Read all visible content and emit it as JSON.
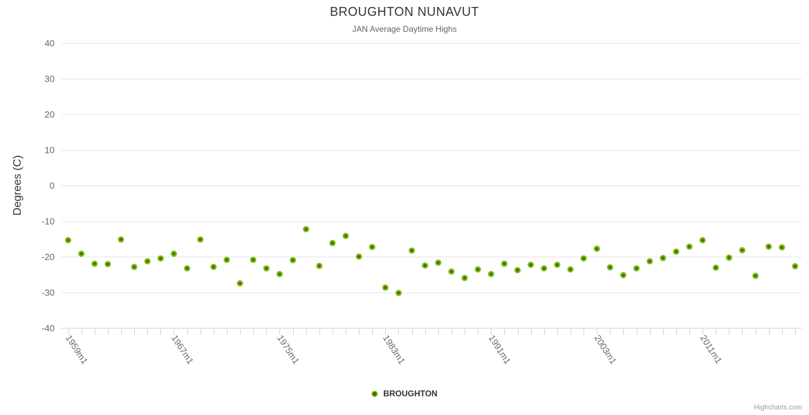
{
  "title": "BROUGHTON NUNAVUT",
  "subtitle": "JAN Average Daytime Highs",
  "legend": {
    "label": "BROUGHTON"
  },
  "credit": "Highcharts.com",
  "colors": {
    "point_outer": "#7db80e",
    "point_inner": "#3e6b04",
    "gridline": "#e6e6e6",
    "axis_line": "#ccd6eb",
    "tick": "#ccd6eb",
    "tick_label": "#666666",
    "title": "#333333",
    "subtitle": "#666666",
    "credit": "#999999"
  },
  "chart_data": {
    "type": "scatter",
    "title": "BROUGHTON NUNAVUT",
    "subtitle": "JAN Average Daytime Highs",
    "xlabel": "",
    "ylabel": "Degrees (C)",
    "ylim": [
      -40,
      40
    ],
    "y_ticks": [
      40,
      30,
      20,
      10,
      0,
      -10,
      -20,
      -30,
      -40
    ],
    "x_label_step": 8,
    "x_label_rotation_deg": 57,
    "grid": "horizontal-only",
    "legend_position": "bottom-center",
    "categories": [
      "1959m1",
      "1960m1",
      "1961m1",
      "1962m1",
      "1963m1",
      "1964m1",
      "1965m1",
      "1966m1",
      "1967m1",
      "1968m1",
      "1969m1",
      "1970m1",
      "1971m1",
      "1972m1",
      "1973m1",
      "1974m1",
      "1975m1",
      "1976m1",
      "1977m1",
      "1978m1",
      "1979m1",
      "1980m1",
      "1981m1",
      "1982m1",
      "1983m1",
      "1984m1",
      "1985m1",
      "1986m1",
      "1987m1",
      "1988m1",
      "1989m1",
      "1990m1",
      "1991m1",
      "1992m1",
      "1993m1",
      "1994m1",
      "1999m1",
      "2000m1",
      "2001m1",
      "2002m1",
      "2003m1",
      "2004m1",
      "2005m1",
      "2006m1",
      "2007m1",
      "2008m1",
      "2009m1",
      "2010m1",
      "2011m1",
      "2012m1",
      "2013m1",
      "2014m1",
      "2015m1",
      "2016m1",
      "2017m1",
      "2018m1"
    ],
    "series": [
      {
        "name": "BROUGHTON",
        "color": "#7db80e",
        "values": [
          -15.4,
          -19.2,
          -22.0,
          -22.1,
          -15.2,
          -22.9,
          -21.3,
          -20.5,
          -19.2,
          -23.3,
          -15.2,
          -22.9,
          -20.9,
          -27.5,
          -20.9,
          -23.3,
          -24.9,
          -21.0,
          -12.3,
          -22.6,
          -16.2,
          -14.2,
          -20.0,
          -17.3,
          -28.7,
          -30.2,
          -18.3,
          -22.5,
          -21.7,
          -24.2,
          -26.0,
          -23.6,
          -24.9,
          -22.0,
          -23.8,
          -22.3,
          -23.3,
          -22.3,
          -23.6,
          -20.5,
          -17.8,
          -23.0,
          -25.2,
          -23.3,
          -21.3,
          -20.4,
          -18.6,
          -17.2,
          -15.4,
          -23.1,
          -20.3,
          -18.2,
          -25.4,
          -17.2,
          -17.4,
          -22.7
        ]
      }
    ]
  }
}
